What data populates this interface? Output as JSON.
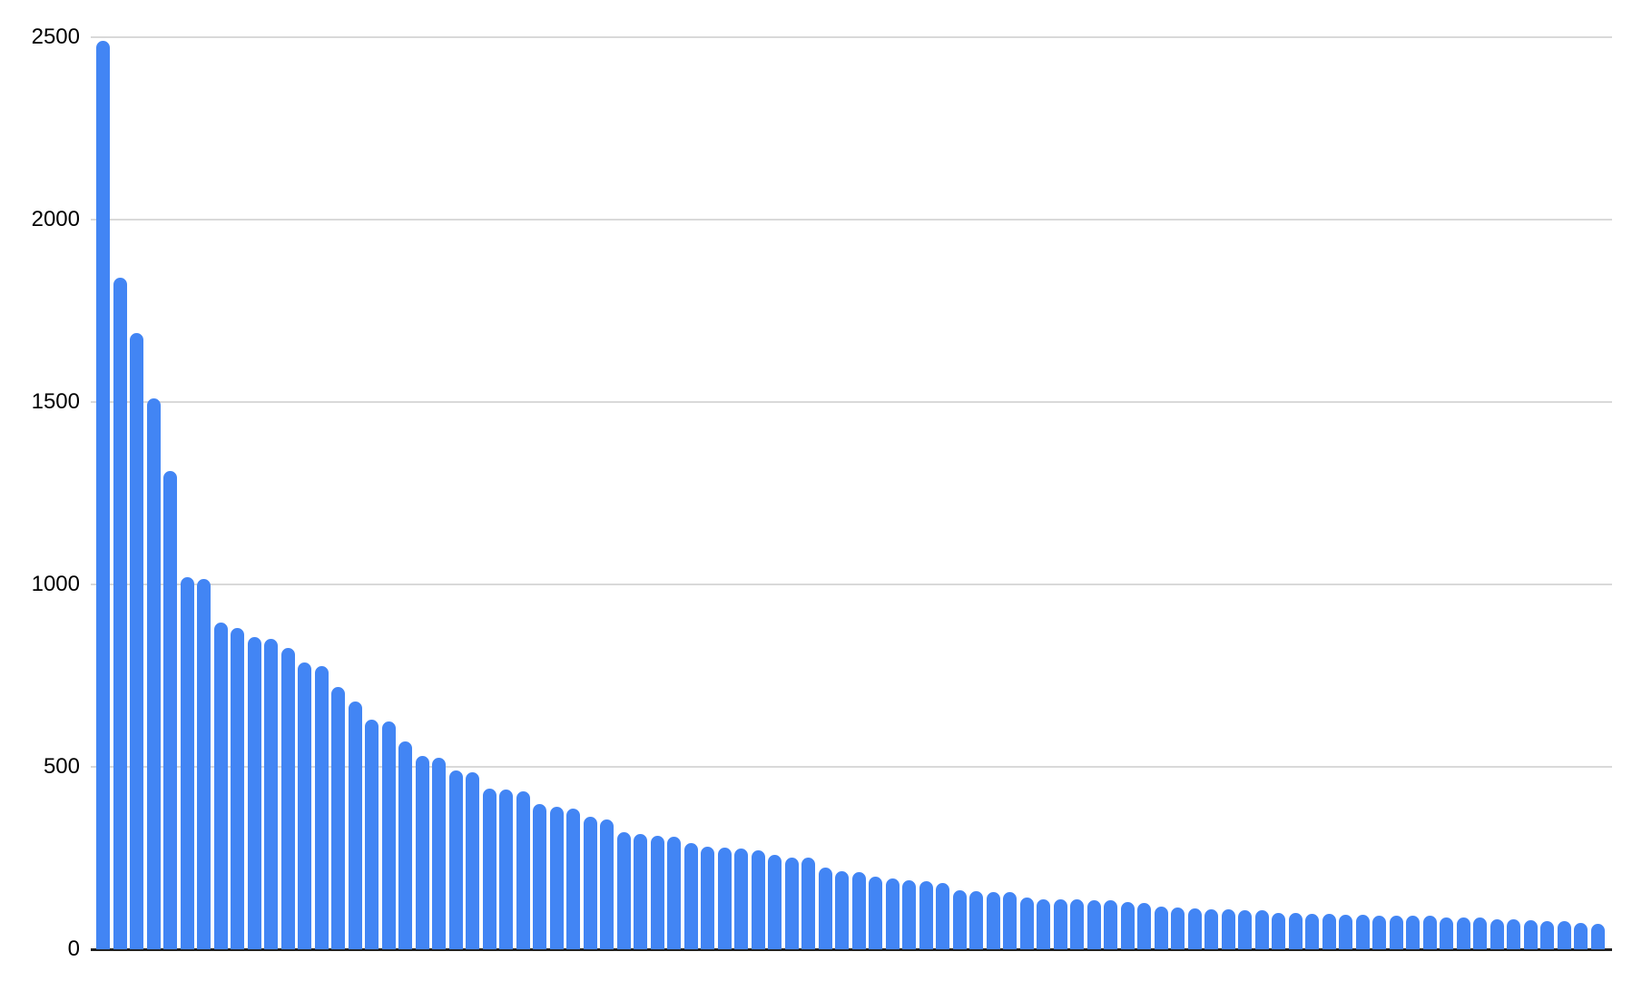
{
  "chart_data": {
    "type": "bar",
    "title": "",
    "xlabel": "",
    "ylabel": "",
    "x_axis_labels_visible": false,
    "legend": "none",
    "grid": true,
    "ylim": [
      0,
      2500
    ],
    "yticks": [
      0,
      500,
      1000,
      1500,
      2000,
      2500
    ],
    "ytick_labels": [
      "0",
      "500",
      "1000",
      "1500",
      "2000",
      "2500"
    ],
    "values": [
      2490,
      1840,
      1690,
      1510,
      1310,
      1020,
      1015,
      895,
      880,
      855,
      850,
      825,
      785,
      775,
      720,
      680,
      630,
      625,
      570,
      530,
      525,
      490,
      485,
      440,
      438,
      432,
      398,
      390,
      386,
      362,
      356,
      320,
      315,
      312,
      308,
      290,
      282,
      278,
      275,
      272,
      258,
      252,
      250,
      225,
      215,
      212,
      198,
      194,
      189,
      186,
      182,
      162,
      159,
      157,
      156,
      142,
      138,
      137,
      136,
      135,
      134,
      130,
      128,
      116,
      114,
      112,
      110,
      109,
      108,
      107,
      100,
      99,
      98,
      98,
      95,
      94,
      93,
      92,
      92,
      91,
      88,
      87,
      86,
      82,
      81,
      80,
      77,
      76,
      71,
      70
    ],
    "colors": {
      "bar": "#4285f4",
      "gridline": "#d9d9d9",
      "axis_line": "#212121",
      "tick_label": "#000000",
      "background": "#ffffff"
    }
  }
}
